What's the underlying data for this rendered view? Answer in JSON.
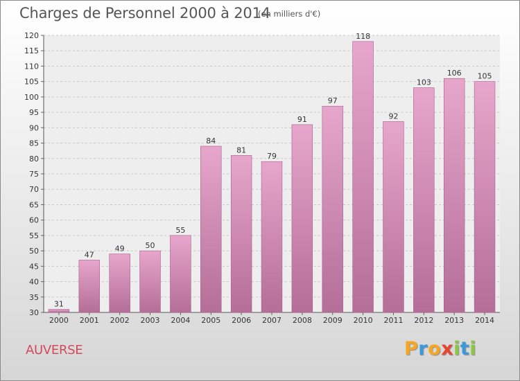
{
  "header": {
    "title": "Charges de Personnel 2000 à 2014",
    "subtitle": "(en milliers d'€)"
  },
  "footer": {
    "commune": "AUVERSE",
    "logo": {
      "letters": [
        "P",
        "r",
        "o",
        "x",
        "i",
        "t",
        "i"
      ],
      "colors": [
        "#f5a623",
        "#3a9ad9",
        "#f5a623",
        "#e8442e",
        "#8cc63f",
        "#3a9ad9",
        "#8cc63f"
      ]
    }
  },
  "chart_data": {
    "type": "bar",
    "categories": [
      "2000",
      "2001",
      "2002",
      "2003",
      "2004",
      "2005",
      "2006",
      "2007",
      "2008",
      "2009",
      "2010",
      "2011",
      "2012",
      "2013",
      "2014"
    ],
    "values": [
      31,
      47,
      49,
      50,
      55,
      84,
      81,
      79,
      91,
      97,
      118,
      92,
      103,
      106,
      105
    ],
    "data_labels": [
      "31",
      "47",
      "49",
      "50",
      "55",
      "84",
      "81",
      "79",
      "91",
      "97",
      "118",
      "92",
      "103",
      "106",
      "105"
    ],
    "ylim": [
      30,
      120
    ],
    "yticks": [
      30,
      35,
      40,
      45,
      50,
      55,
      60,
      65,
      70,
      75,
      80,
      85,
      90,
      95,
      100,
      105,
      110,
      115,
      120
    ],
    "ytick_labels": [
      "30",
      "35",
      "40",
      "45",
      "50",
      "55",
      "60",
      "65",
      "70",
      "75",
      "80",
      "85",
      "90",
      "95",
      "100",
      "105",
      "110",
      "115",
      "120"
    ],
    "grid": true,
    "bar_color_top": "#e7a6cc",
    "bar_color_bottom": "#b46e98",
    "plot_background": "#eeeeee"
  }
}
